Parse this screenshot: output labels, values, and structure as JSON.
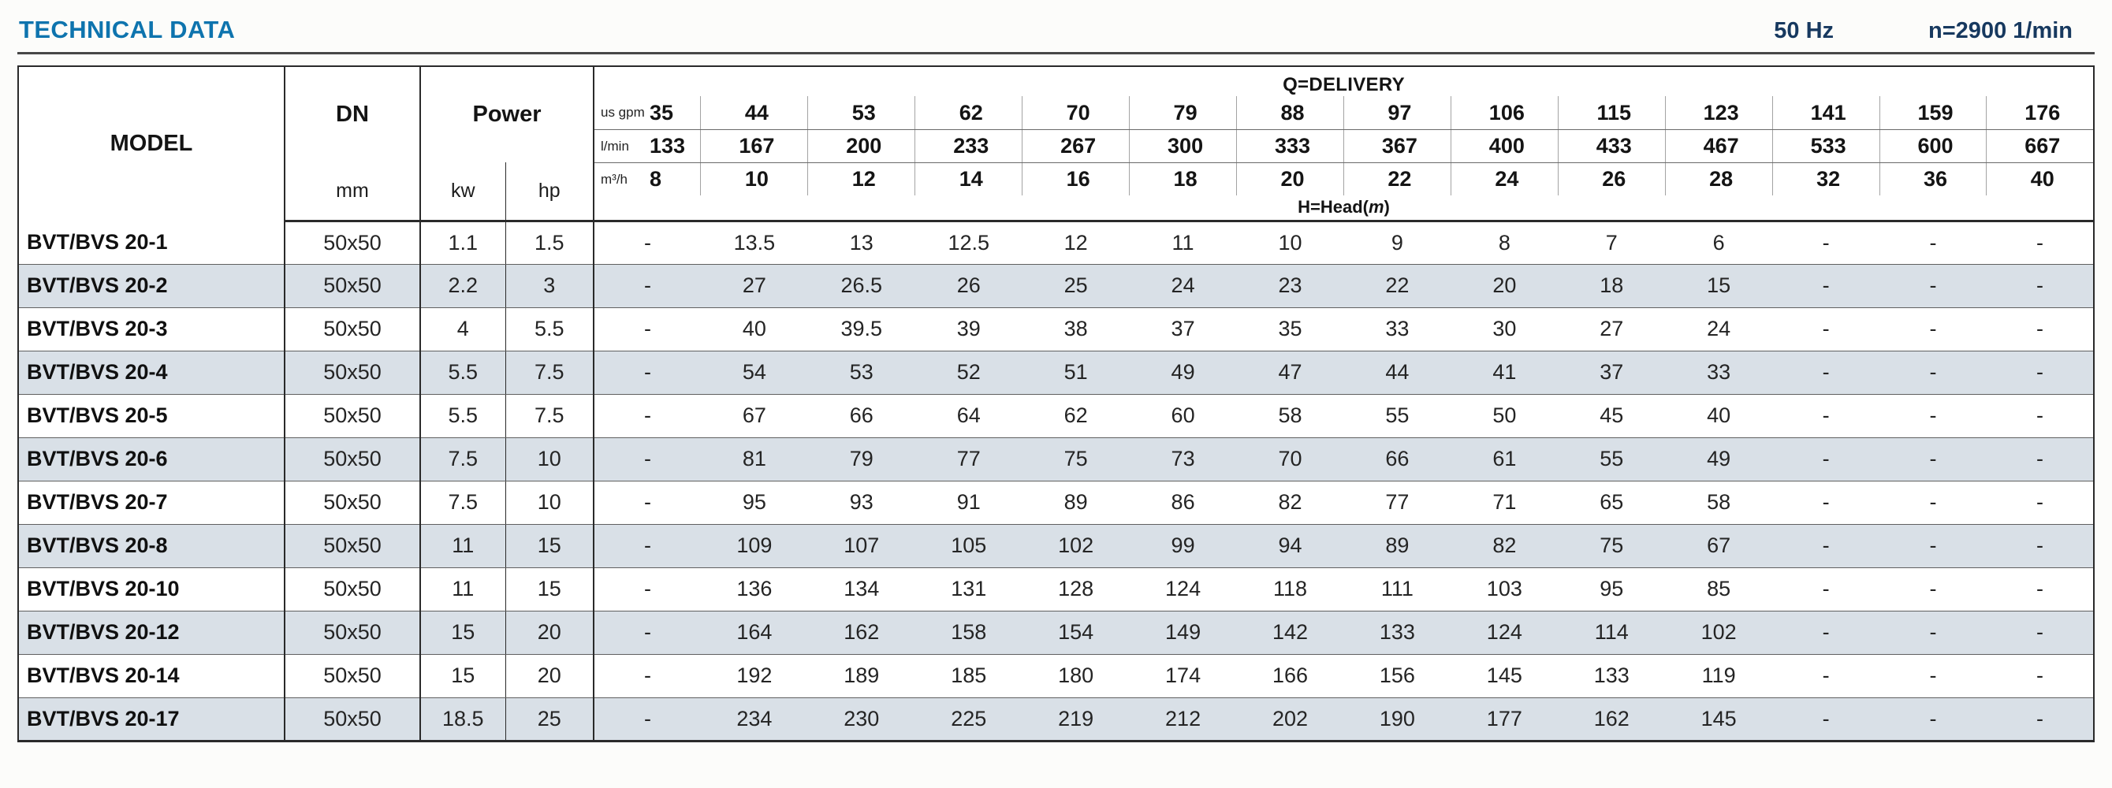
{
  "page": {
    "title": "TECHNICAL DATA",
    "frequency": "50 Hz",
    "speed": "n=2900 1/min"
  },
  "table": {
    "header": {
      "model": "MODEL",
      "dn": "DN",
      "dn_unit": "mm",
      "power": "Power",
      "power_units": [
        "kw",
        "hp"
      ],
      "delivery_title": "Q=DELIVERY",
      "head_label_prefix": "H=Head(",
      "head_label_unit": "m",
      "head_label_suffix": ")",
      "unit_rows": [
        {
          "label": "us gpm",
          "values": [
            "35",
            "44",
            "53",
            "62",
            "70",
            "79",
            "88",
            "97",
            "106",
            "115",
            "123",
            "141",
            "159",
            "176"
          ]
        },
        {
          "label": "l/min",
          "values": [
            "133",
            "167",
            "200",
            "233",
            "267",
            "300",
            "333",
            "367",
            "400",
            "433",
            "467",
            "533",
            "600",
            "667"
          ]
        },
        {
          "label": "m³/h",
          "values": [
            "8",
            "10",
            "12",
            "14",
            "16",
            "18",
            "20",
            "22",
            "24",
            "26",
            "28",
            "32",
            "36",
            "40"
          ]
        }
      ]
    },
    "rows": [
      {
        "model": "BVT/BVS 20-1",
        "dn": "50x50",
        "kw": "1.1",
        "hp": "1.5",
        "heads": [
          "-",
          "13.5",
          "13",
          "12.5",
          "12",
          "11",
          "10",
          "9",
          "8",
          "7",
          "6",
          "-",
          "-",
          "-"
        ]
      },
      {
        "model": "BVT/BVS 20-2",
        "dn": "50x50",
        "kw": "2.2",
        "hp": "3",
        "heads": [
          "-",
          "27",
          "26.5",
          "26",
          "25",
          "24",
          "23",
          "22",
          "20",
          "18",
          "15",
          "-",
          "-",
          "-"
        ]
      },
      {
        "model": "BVT/BVS 20-3",
        "dn": "50x50",
        "kw": "4",
        "hp": "5.5",
        "heads": [
          "-",
          "40",
          "39.5",
          "39",
          "38",
          "37",
          "35",
          "33",
          "30",
          "27",
          "24",
          "-",
          "-",
          "-"
        ]
      },
      {
        "model": "BVT/BVS 20-4",
        "dn": "50x50",
        "kw": "5.5",
        "hp": "7.5",
        "heads": [
          "-",
          "54",
          "53",
          "52",
          "51",
          "49",
          "47",
          "44",
          "41",
          "37",
          "33",
          "-",
          "-",
          "-"
        ]
      },
      {
        "model": "BVT/BVS 20-5",
        "dn": "50x50",
        "kw": "5.5",
        "hp": "7.5",
        "heads": [
          "-",
          "67",
          "66",
          "64",
          "62",
          "60",
          "58",
          "55",
          "50",
          "45",
          "40",
          "-",
          "-",
          "-"
        ]
      },
      {
        "model": "BVT/BVS 20-6",
        "dn": "50x50",
        "kw": "7.5",
        "hp": "10",
        "heads": [
          "-",
          "81",
          "79",
          "77",
          "75",
          "73",
          "70",
          "66",
          "61",
          "55",
          "49",
          "-",
          "-",
          "-"
        ]
      },
      {
        "model": "BVT/BVS 20-7",
        "dn": "50x50",
        "kw": "7.5",
        "hp": "10",
        "heads": [
          "-",
          "95",
          "93",
          "91",
          "89",
          "86",
          "82",
          "77",
          "71",
          "65",
          "58",
          "-",
          "-",
          "-"
        ]
      },
      {
        "model": "BVT/BVS 20-8",
        "dn": "50x50",
        "kw": "11",
        "hp": "15",
        "heads": [
          "-",
          "109",
          "107",
          "105",
          "102",
          "99",
          "94",
          "89",
          "82",
          "75",
          "67",
          "-",
          "-",
          "-"
        ]
      },
      {
        "model": "BVT/BVS 20-10",
        "dn": "50x50",
        "kw": "11",
        "hp": "15",
        "heads": [
          "-",
          "136",
          "134",
          "131",
          "128",
          "124",
          "118",
          "111",
          "103",
          "95",
          "85",
          "-",
          "-",
          "-"
        ]
      },
      {
        "model": "BVT/BVS 20-12",
        "dn": "50x50",
        "kw": "15",
        "hp": "20",
        "heads": [
          "-",
          "164",
          "162",
          "158",
          "154",
          "149",
          "142",
          "133",
          "124",
          "114",
          "102",
          "-",
          "-",
          "-"
        ]
      },
      {
        "model": "BVT/BVS 20-14",
        "dn": "50x50",
        "kw": "15",
        "hp": "20",
        "heads": [
          "-",
          "192",
          "189",
          "185",
          "180",
          "174",
          "166",
          "156",
          "145",
          "133",
          "119",
          "-",
          "-",
          "-"
        ]
      },
      {
        "model": "BVT/BVS 20-17",
        "dn": "50x50",
        "kw": "18.5",
        "hp": "25",
        "heads": [
          "-",
          "234",
          "230",
          "225",
          "219",
          "212",
          "202",
          "190",
          "177",
          "162",
          "145",
          "-",
          "-",
          "-"
        ]
      }
    ]
  },
  "colors": {
    "title_blue": "#0e74ae",
    "spec_navy": "#17395f",
    "row_shade": "#d9e0e7",
    "border_dark": "#2a2a2a"
  }
}
